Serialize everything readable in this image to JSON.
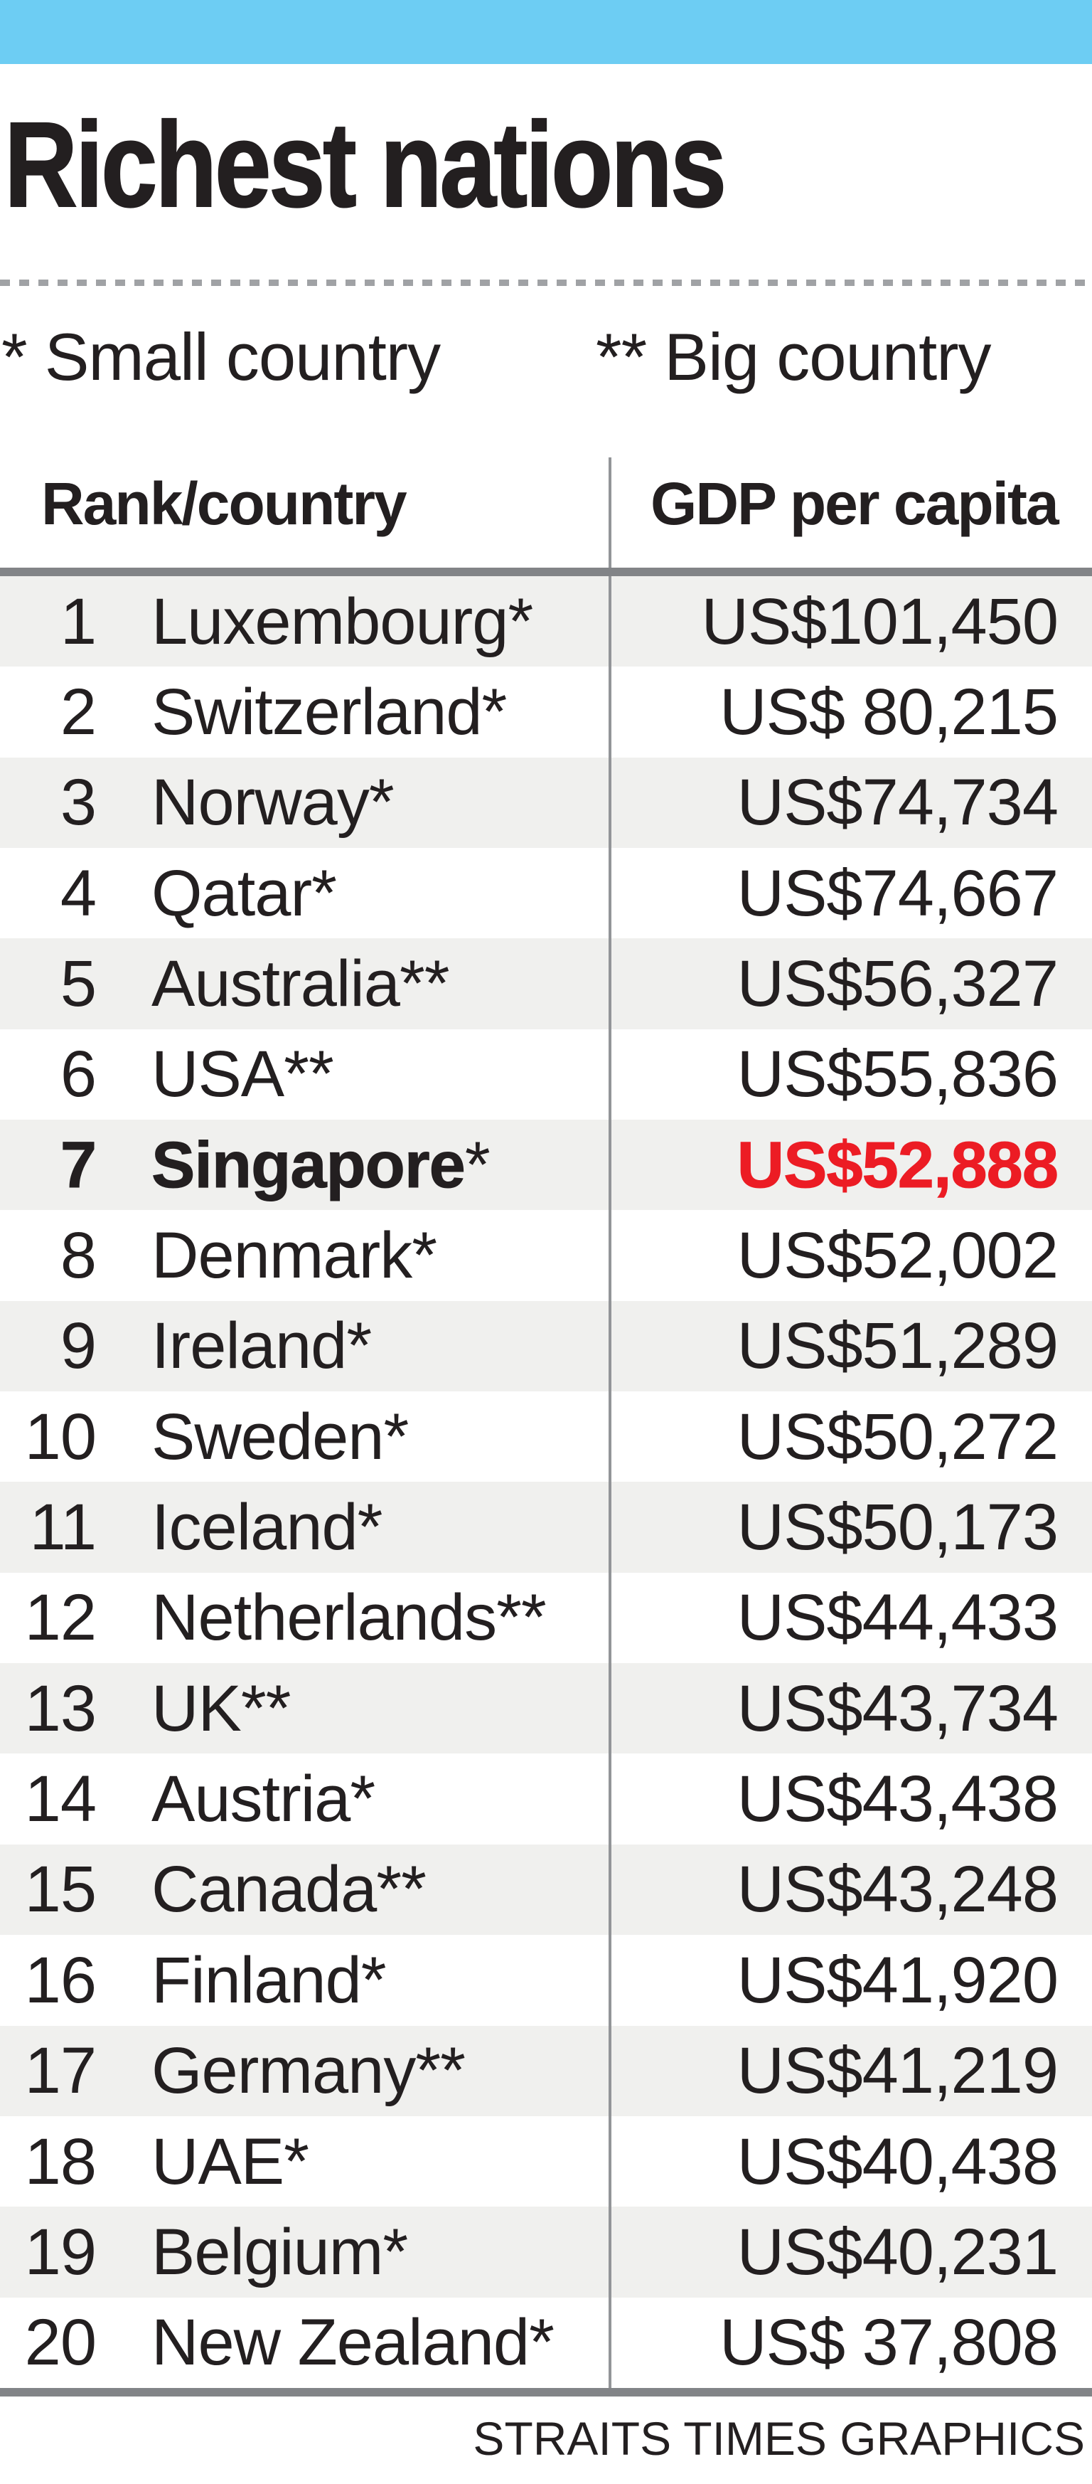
{
  "page": {
    "title": "Richest nations",
    "footer": "STRAITS TIMES GRAPHICS"
  },
  "colors": {
    "accent": "#6dcdf3",
    "ink": "#231f20",
    "red": "#ec1c24",
    "rule": "#828487",
    "divider": "#939598",
    "dash": "#a0a2a5",
    "zebra": "#f0f0ee"
  },
  "legend": {
    "small": "* Small country",
    "big": "** Big country"
  },
  "table": {
    "columns": [
      "Rank/country",
      "GDP per capita"
    ],
    "rows": [
      {
        "rank": "1",
        "country": "Luxembourg",
        "marker": "*",
        "gdp": "US$101,450",
        "highlight": false
      },
      {
        "rank": "2",
        "country": "Switzerland",
        "marker": "*",
        "gdp": "US$ 80,215",
        "highlight": false
      },
      {
        "rank": "3",
        "country": "Norway",
        "marker": "*",
        "gdp": "US$74,734",
        "highlight": false
      },
      {
        "rank": "4",
        "country": "Qatar",
        "marker": "*",
        "gdp": "US$74,667",
        "highlight": false
      },
      {
        "rank": "5",
        "country": "Australia",
        "marker": "**",
        "gdp": "US$56,327",
        "highlight": false
      },
      {
        "rank": "6",
        "country": "USA",
        "marker": "**",
        "gdp": "US$55,836",
        "highlight": false
      },
      {
        "rank": "7",
        "country": "Singapore",
        "marker": "*",
        "gdp": "US$52,888",
        "highlight": true
      },
      {
        "rank": "8",
        "country": "Denmark",
        "marker": "*",
        "gdp": "US$52,002",
        "highlight": false
      },
      {
        "rank": "9",
        "country": "Ireland",
        "marker": "*",
        "gdp": "US$51,289",
        "highlight": false
      },
      {
        "rank": "10",
        "country": "Sweden",
        "marker": "*",
        "gdp": "US$50,272",
        "highlight": false
      },
      {
        "rank": "11",
        "country": "Iceland",
        "marker": "*",
        "gdp": "US$50,173",
        "highlight": false
      },
      {
        "rank": "12",
        "country": "Netherlands",
        "marker": "**",
        "gdp": "US$44,433",
        "highlight": false
      },
      {
        "rank": "13",
        "country": "UK",
        "marker": "**",
        "gdp": "US$43,734",
        "highlight": false
      },
      {
        "rank": "14",
        "country": "Austria",
        "marker": "*",
        "gdp": "US$43,438",
        "highlight": false
      },
      {
        "rank": "15",
        "country": "Canada",
        "marker": "**",
        "gdp": "US$43,248",
        "highlight": false
      },
      {
        "rank": "16",
        "country": "Finland",
        "marker": "*",
        "gdp": "US$41,920",
        "highlight": false
      },
      {
        "rank": "17",
        "country": "Germany",
        "marker": "**",
        "gdp": "US$41,219",
        "highlight": false
      },
      {
        "rank": "18",
        "country": "UAE",
        "marker": "*",
        "gdp": "US$40,438",
        "highlight": false
      },
      {
        "rank": "19",
        "country": "Belgium",
        "marker": "*",
        "gdp": "US$40,231",
        "highlight": false
      },
      {
        "rank": "20",
        "country": "New Zealand",
        "marker": "*",
        "gdp": "US$ 37,808",
        "highlight": false
      }
    ]
  },
  "chart_data": {
    "type": "table",
    "title": "Richest nations",
    "columns": [
      "Rank/country",
      "GDP per capita"
    ],
    "notes": {
      "*": "Small country",
      "**": "Big country"
    },
    "highlighted_row": "Singapore",
    "categories": [
      "Luxembourg*",
      "Switzerland*",
      "Norway*",
      "Qatar*",
      "Australia**",
      "USA**",
      "Singapore*",
      "Denmark*",
      "Ireland*",
      "Sweden*",
      "Iceland*",
      "Netherlands**",
      "UK**",
      "Austria*",
      "Canada**",
      "Finland*",
      "Germany**",
      "UAE*",
      "Belgium*",
      "New Zealand*"
    ],
    "values": [
      101450,
      80215,
      74734,
      74667,
      56327,
      55836,
      52888,
      52002,
      51289,
      50272,
      50173,
      44433,
      43734,
      43438,
      43248,
      41920,
      41219,
      40438,
      40231,
      37808
    ],
    "value_unit": "US$ per capita",
    "source_credit": "STRAITS TIMES GRAPHICS"
  }
}
